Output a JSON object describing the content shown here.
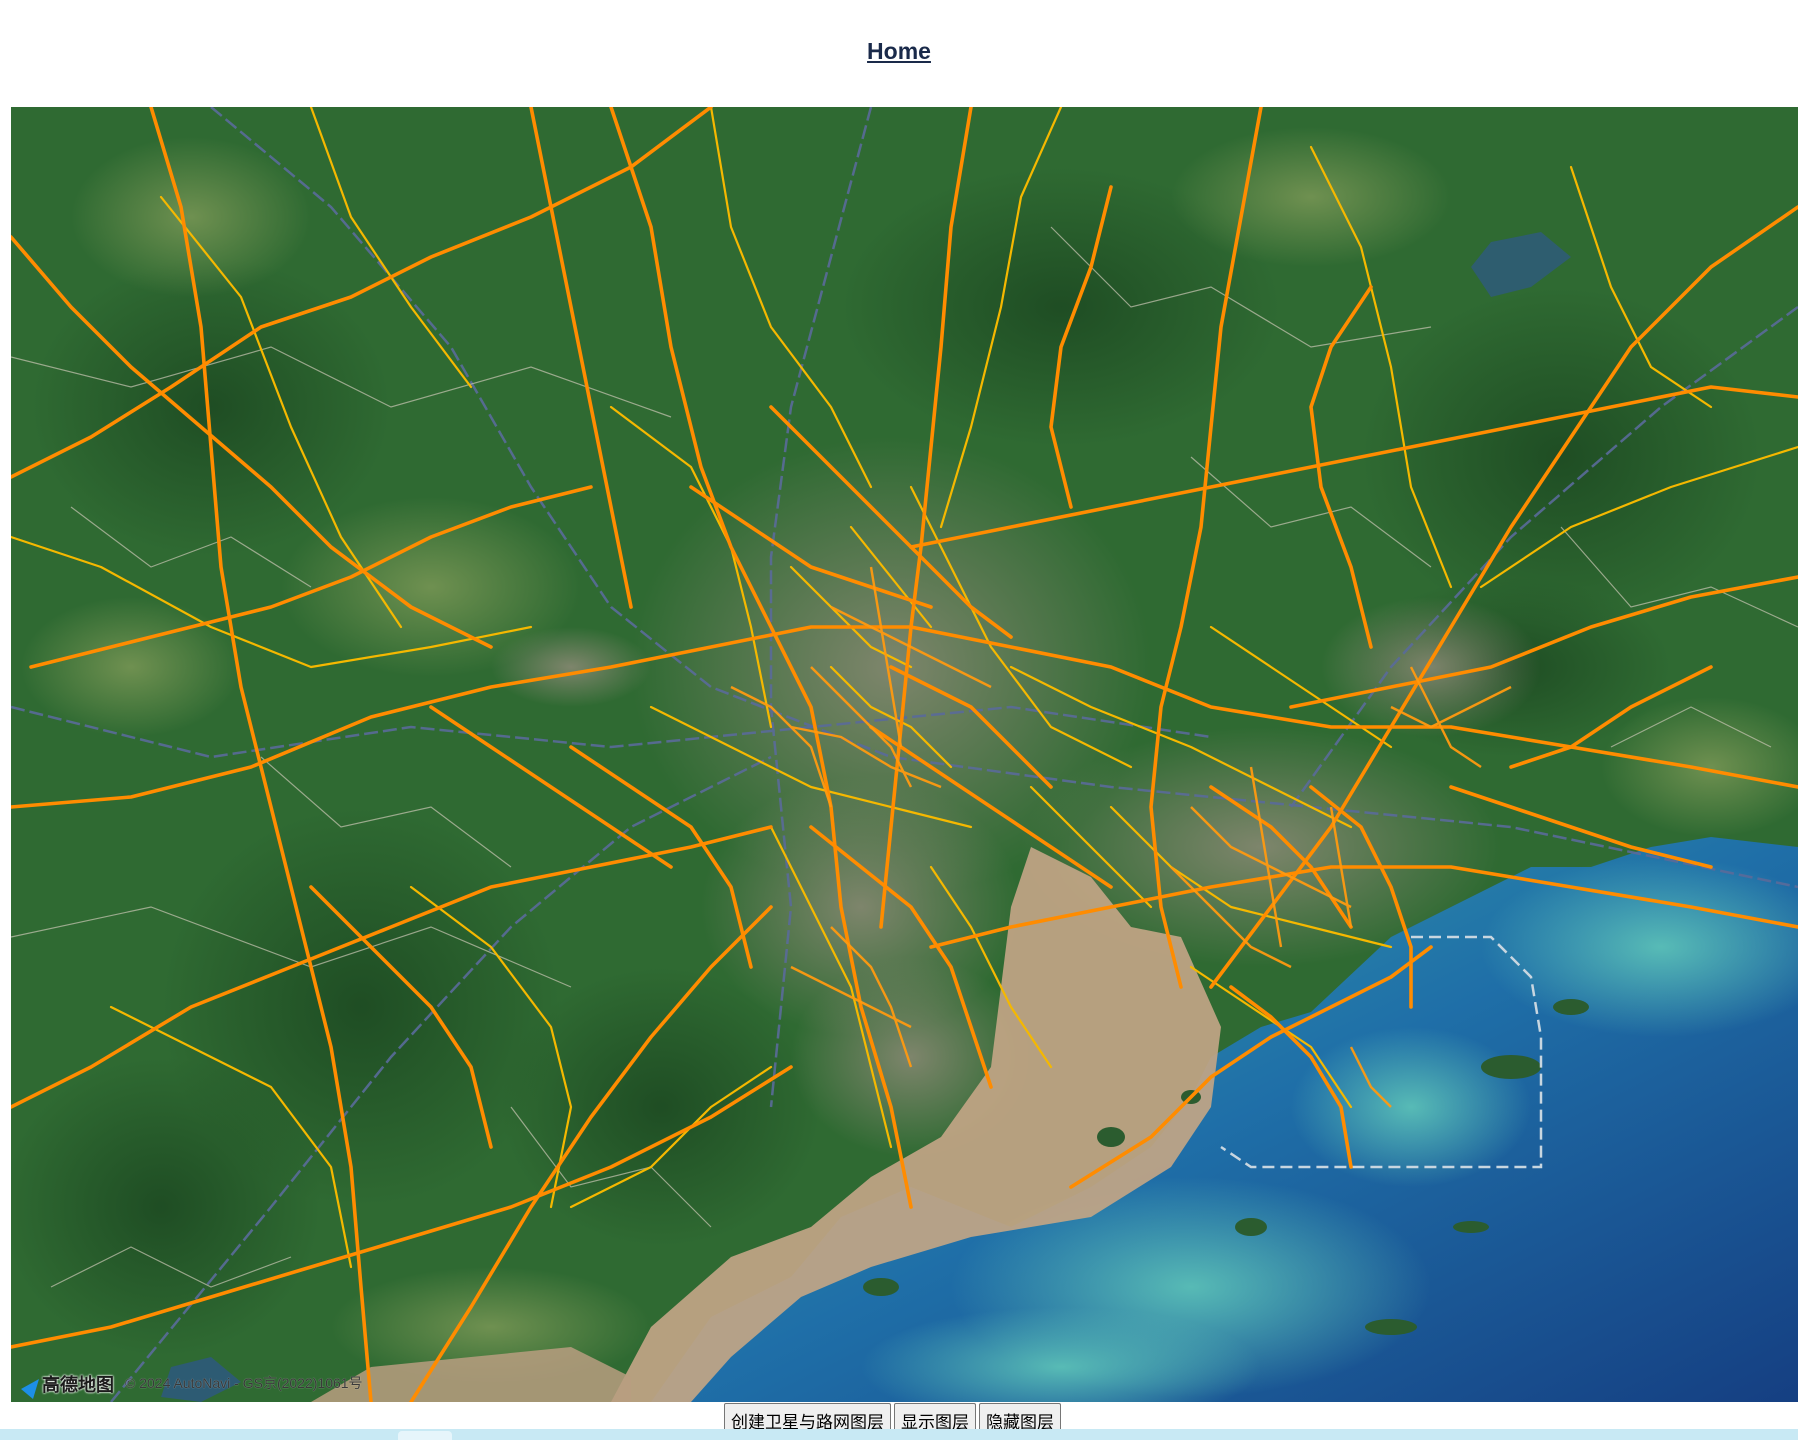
{
  "header": {
    "home_link": "Home"
  },
  "map": {
    "provider_logo": "高德地图",
    "copyright": "© 2024 AutoNavi - GS京(2022)1061号",
    "layers": [
      "satellite",
      "road-net"
    ]
  },
  "toolbar": {
    "create_layer_label": "创建卫星与路网图层",
    "show_layer_label": "显示图层",
    "hide_layer_label": "隐藏图层"
  },
  "colors": {
    "land": "#2f6a32",
    "sea": "#1c5d95",
    "river": "#b8a080",
    "highway": "#ff8c00",
    "road": "#f5b800",
    "rail": "#5a6b9a"
  }
}
